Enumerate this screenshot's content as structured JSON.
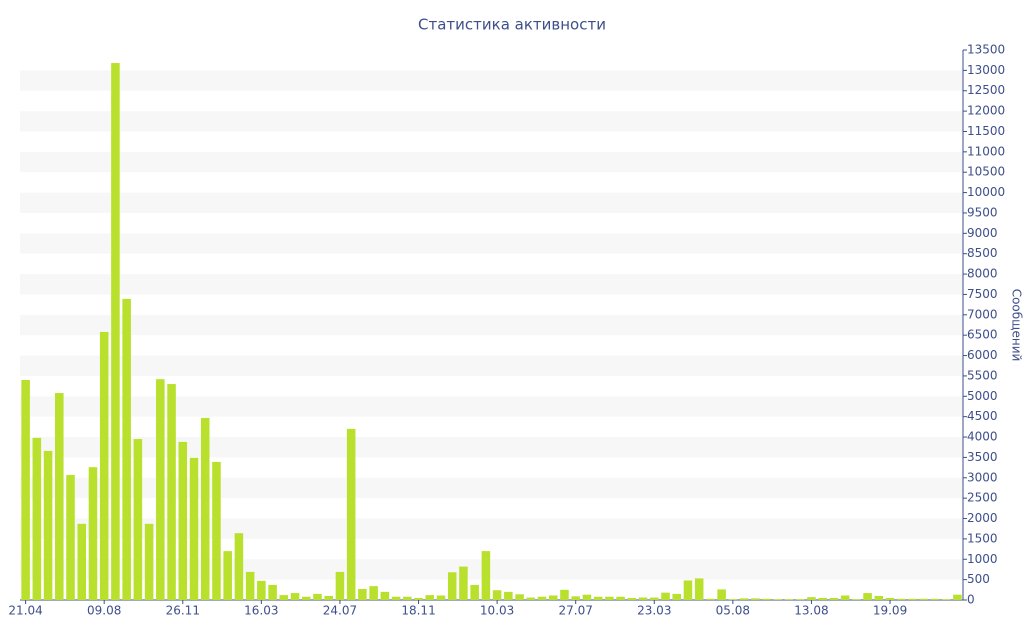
{
  "chart_data": {
    "type": "bar",
    "title": "Статистика активности",
    "y_label": "Сообщений",
    "y_axis_side": "right",
    "color": "#b8e02c",
    "grid": "bands",
    "categories": [
      "21.04",
      null,
      null,
      null,
      null,
      null,
      null,
      "09.08",
      null,
      null,
      null,
      null,
      null,
      null,
      "26.11",
      null,
      null,
      null,
      null,
      null,
      null,
      "16.03",
      null,
      null,
      null,
      null,
      null,
      null,
      "24.07",
      null,
      null,
      null,
      null,
      null,
      null,
      "18.11",
      null,
      null,
      null,
      null,
      null,
      null,
      "10.03",
      null,
      null,
      null,
      null,
      null,
      null,
      "27.07",
      null,
      null,
      null,
      null,
      null,
      null,
      "23.03",
      null,
      null,
      null,
      null,
      null,
      null,
      "05.08",
      null,
      null,
      null,
      null,
      null,
      null,
      "13.08",
      null,
      null,
      null,
      null,
      null,
      null,
      "19.09",
      null,
      null,
      null,
      null,
      null,
      null
    ],
    "values": [
      5400,
      3980,
      3660,
      5080,
      3070,
      1870,
      3260,
      6580,
      13180,
      7390,
      3950,
      1870,
      5420,
      5300,
      3880,
      3490,
      4470,
      3390,
      1200,
      1640,
      690,
      470,
      370,
      120,
      170,
      80,
      150,
      100,
      690,
      4200,
      270,
      340,
      200,
      80,
      80,
      50,
      120,
      110,
      680,
      820,
      370,
      1200,
      240,
      200,
      140,
      60,
      80,
      110,
      250,
      90,
      130,
      80,
      80,
      80,
      50,
      60,
      60,
      180,
      150,
      480,
      530,
      30,
      260,
      20,
      40,
      40,
      30,
      20,
      20,
      20,
      70,
      50,
      50,
      110,
      20,
      170,
      100,
      50,
      30,
      30,
      30,
      30,
      20,
      130
    ],
    "ylim": [
      0,
      13500
    ],
    "yticks": [
      0,
      500,
      1000,
      1500,
      2000,
      2500,
      3000,
      3500,
      4000,
      4500,
      5000,
      5500,
      6000,
      6500,
      7000,
      7500,
      8000,
      8500,
      9000,
      9500,
      10000,
      10500,
      11000,
      11500,
      12000,
      12500,
      13000,
      13500
    ]
  }
}
